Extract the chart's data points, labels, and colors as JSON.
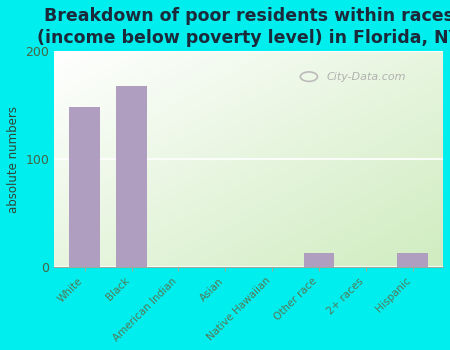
{
  "title": "Breakdown of poor residents within races\n(income below poverty level) in Florida, NY",
  "categories": [
    "White",
    "Black",
    "American Indian",
    "Asian",
    "Native Hawaiian",
    "Other race",
    "2+ races",
    "Hispanic"
  ],
  "values": [
    148,
    168,
    0,
    0,
    0,
    13,
    0,
    13
  ],
  "bar_color": "#b09ec0",
  "ylabel": "absolute numbers",
  "ylim": [
    0,
    200
  ],
  "yticks": [
    0,
    100,
    200
  ],
  "bg_color_outer": "#00eeee",
  "title_color": "#1a2a3a",
  "title_fontsize": 12.5,
  "watermark": "City-Data.com",
  "xlabel_color": "#557755",
  "ylabel_color": "#334433"
}
